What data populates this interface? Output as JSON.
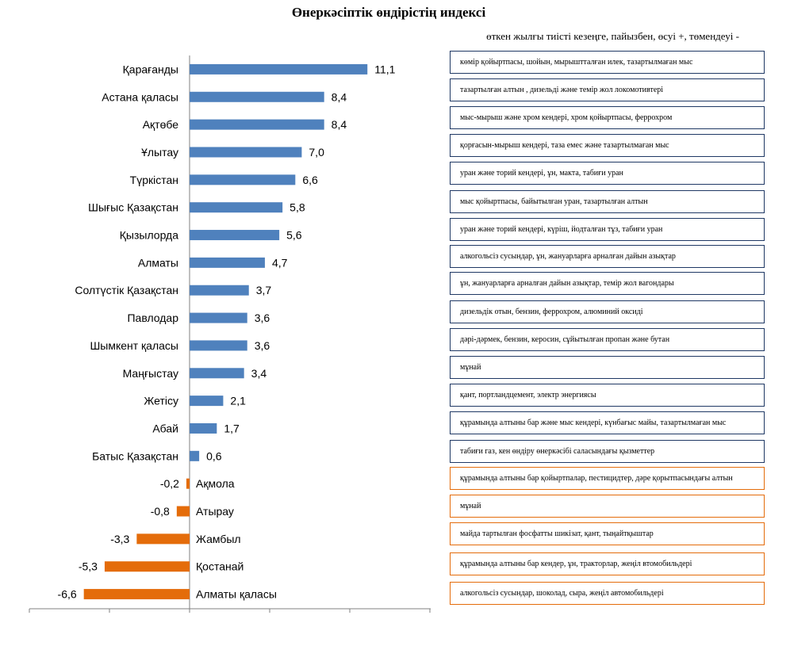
{
  "title": "Өнеркәсіптік өндірістің индексі",
  "subtitle": "өткен жылғы тиісті кезеңге, пайызбен, өсуі +, төмендеуі -",
  "colors": {
    "positive": "#4f81bd",
    "negative": "#e46c0a",
    "positive_box_border": "#1f3864",
    "negative_box_border": "#e46c0a"
  },
  "chart_data": {
    "type": "bar",
    "orientation": "horizontal",
    "categories": [
      "Қарағанды",
      "Астана қаласы",
      "Ақтөбе",
      "Ұлытау",
      "Түркістан",
      "Шығыс Қазақстан",
      "Қызылорда",
      "Алматы",
      "Солтүстік Қазақстан",
      "Павлодар",
      "Шымкент қаласы",
      "Маңғыстау",
      "Жетісу",
      "Абай",
      "Батыс Қазақстан",
      "Ақмола",
      "Атырау",
      "Жамбыл",
      "Қостанай",
      "Алматы қаласы"
    ],
    "values": [
      11.1,
      8.4,
      8.4,
      7.0,
      6.6,
      5.8,
      5.6,
      4.7,
      3.7,
      3.6,
      3.6,
      3.4,
      2.1,
      1.7,
      0.6,
      -0.2,
      -0.8,
      -3.3,
      -5.3,
      -6.6
    ],
    "value_labels": [
      "11,1",
      "8,4",
      "8,4",
      "7,0",
      "6,6",
      "5,8",
      "5,6",
      "4,7",
      "3,7",
      "3,6",
      "3,6",
      "3,4",
      "2,1",
      "1,7",
      "0,6",
      "-0,2",
      "-0,8",
      "-3,3",
      "-5,3",
      "-6,6"
    ],
    "xlim": [
      -10,
      15
    ],
    "grid": false,
    "legend": "none"
  },
  "notes": [
    "көмір қойыртпасы, шойын,  мырыштталған илек, тазартылмаған  мыс",
    "тазартылған алтын , дизельді және темір жол локомотивтері",
    "мыс-мырыш және хром  кендері, хром  қойыртпасы, феррохром",
    "қорғасын-мырыш кендері, таза емес және тазартылмаған мыс",
    "уран және торий кендері, ұн,  макта, табиғи уран",
    "мыс қойыртпасы,  байытылған уран, тазартылған алтын",
    "уран және торий кендері, күріш, йодталған тұз, табиғи уран",
    "алкогольсіз сусындар,  ұн, жануарларға арналған дайын азықтар",
    "ұн, жануарларға арналған дайын азықтар, темір жол вагондары",
    "дизельдік отын, бензин,  феррохром, алюминий оксиді",
    "дәрі-дәрмек, бензин, керосин, сұйытылған пропан және бутан",
    "мұнай",
    "қант,  портландцемент,  электр энергиясы",
    "құрамында алтыны бар және мыс  кендері, күнбағыс майы, тазартылмаған мыс",
    "табиғи газ, кен  өндіру өнеркәсібі саласындағы қызметтер",
    "құрамында алтыны бар қойыртпалар, пестицидтер, дәре қорытпасындағы алтын",
    "мұнай",
    "майда тартылған фосфатты шикізат,  қант, тыңайтқыштар",
    "құрамында алтыны бар кендер, ұн, тракторлар, жеңіл втомобильдері",
    "алкогольсіз сусындар, шоколад, сыра, жеңіл автомобильдері"
  ]
}
